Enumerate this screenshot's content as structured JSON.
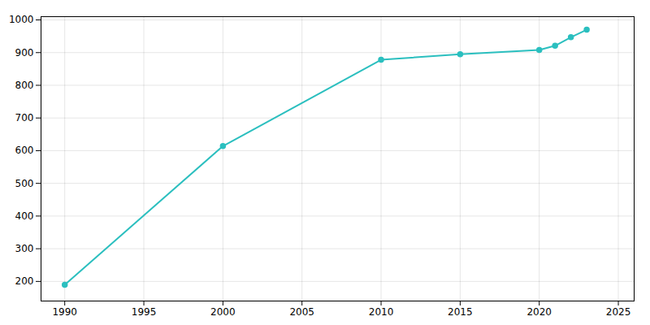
{
  "chart_data": {
    "type": "line",
    "x": [
      1990,
      2000,
      2010,
      2015,
      2020,
      2021,
      2022,
      2023
    ],
    "values": [
      190,
      614,
      878,
      895,
      908,
      921,
      947,
      970
    ],
    "color": "#2bbfbf",
    "marker": "circle",
    "xlim": [
      1988.5,
      2026
    ],
    "ylim": [
      140,
      1010
    ],
    "xticks": [
      1990,
      1995,
      2000,
      2005,
      2010,
      2015,
      2020,
      2025
    ],
    "yticks": [
      200,
      300,
      400,
      500,
      600,
      700,
      800,
      900,
      1000
    ],
    "grid": true
  }
}
